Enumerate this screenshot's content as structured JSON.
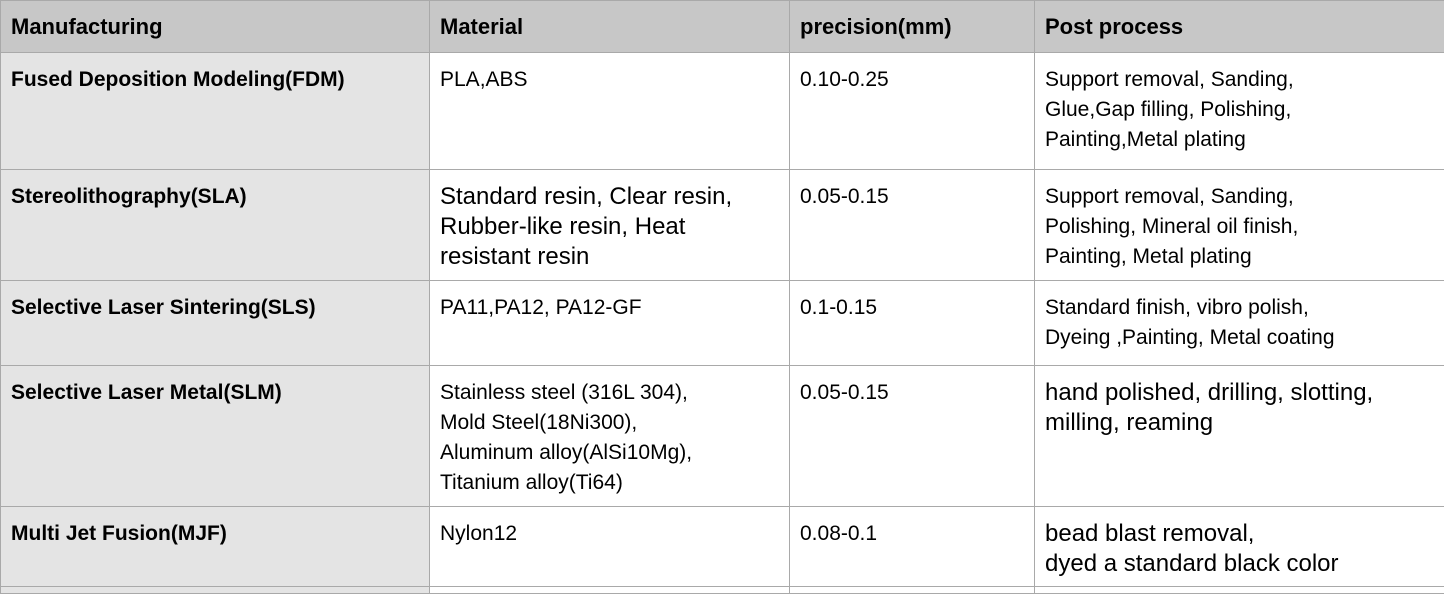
{
  "table": {
    "headers": [
      "Manufacturing",
      "Material",
      "precision(mm)",
      "Post process"
    ],
    "rows": [
      {
        "manufacturing": "Fused Deposition Modeling(FDM)",
        "material": "PLA,ABS",
        "precision": "0.10-0.25",
        "post_process": "Support removal, Sanding,\nGlue,Gap filling, Polishing,\nPainting,Metal plating"
      },
      {
        "manufacturing": "Stereolithography(SLA)",
        "material": "Standard resin, Clear resin,\nRubber-like resin, Heat\nresistant resin",
        "precision": "0.05-0.15",
        "post_process": "Support removal, Sanding,\nPolishing, Mineral oil finish,\nPainting, Metal plating"
      },
      {
        "manufacturing": "Selective Laser  Sintering(SLS)",
        "material": "PA11,PA12, PA12-GF",
        "precision": "0.1-0.15",
        "post_process": "Standard finish, vibro polish,\nDyeing ,Painting, Metal coating"
      },
      {
        "manufacturing": "Selective Laser Metal(SLM)",
        "material": "Stainless steel (316L 304),\nMold Steel(18Ni300),\nAluminum alloy(AlSi10Mg),\nTitanium alloy(Ti64)",
        "precision": "0.05-0.15",
        "post_process": "hand polished, drilling, slotting,\nmilling, reaming"
      },
      {
        "manufacturing": "Multi Jet Fusion(MJF)",
        "material": "Nylon12",
        "precision": "0.08-0.1",
        "post_process": "bead blast removal,\ndyed a standard black color"
      }
    ]
  }
}
